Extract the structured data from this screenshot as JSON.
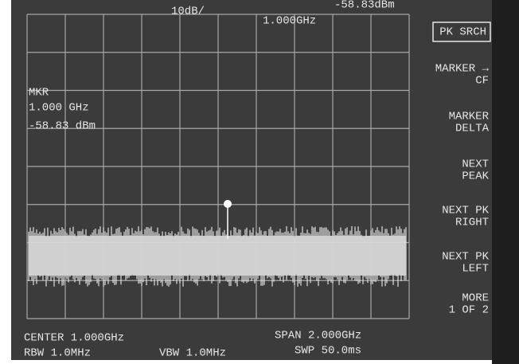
{
  "header": {
    "scale": "10dB/",
    "center_readout": "1.000GHz",
    "marker_readout": "-58.83dBm"
  },
  "marker": {
    "label": "MKR",
    "frequency": "1.000 GHz",
    "amplitude": "-58.83 dBm"
  },
  "softkeys": [
    [
      "PK SRCH"
    ],
    [
      "MARKER →",
      "CF"
    ],
    [
      "MARKER",
      "DELTA"
    ],
    [
      "NEXT",
      "PEAK"
    ],
    [
      "NEXT PK",
      "RIGHT"
    ],
    [
      "NEXT PK",
      "LEFT"
    ],
    [
      "MORE",
      "1 OF 2"
    ]
  ],
  "footer": {
    "center": "CENTER 1.000GHz",
    "rbw": "RBW 1.0MHz",
    "vbw": "VBW 1.0MHz",
    "span": "SPAN 2.000GHz",
    "sweep": "SWP 50.0ms"
  }
}
